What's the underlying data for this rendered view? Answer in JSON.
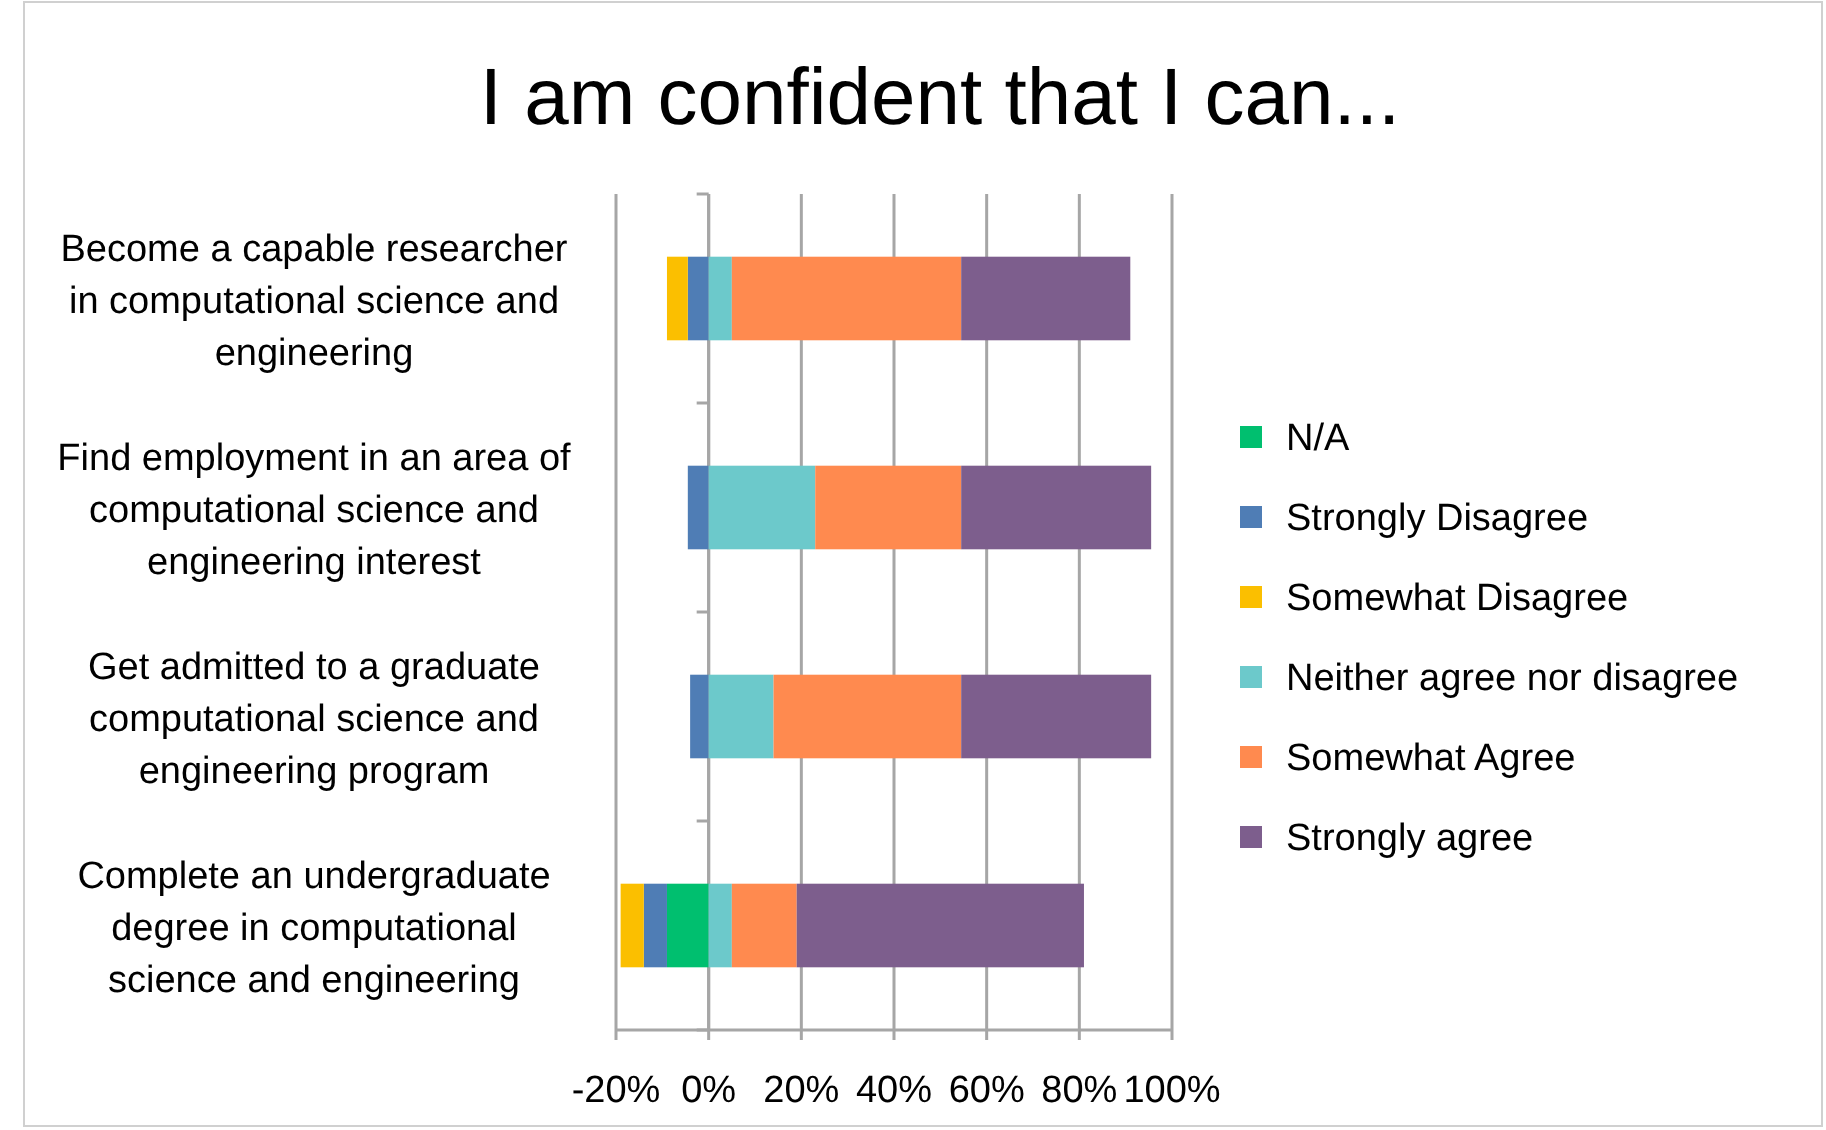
{
  "chart_data": {
    "type": "bar",
    "orientation": "horizontal",
    "stacked": true,
    "title": "I am confident that I can...",
    "categories": [
      "Become a capable researcher in computational science and engineering",
      "Find employment in an area of computational science and engineering interest",
      "Get admitted to a graduate computational science and engineering program",
      "Complete an undergraduate degree in computational science and engineering"
    ],
    "series": [
      {
        "name": "N/A",
        "color": "#00bf6f",
        "values": [
          0,
          0,
          0,
          -9
        ]
      },
      {
        "name": "Strongly Disagree",
        "color": "#4f7db5",
        "values": [
          -4.5,
          -4.5,
          -4,
          -5
        ]
      },
      {
        "name": "Somewhat Disagree",
        "color": "#fbbf00",
        "values": [
          -4.5,
          0,
          0,
          -5
        ]
      },
      {
        "name": "Neither agree nor disagree",
        "color": "#6cc9cb",
        "values": [
          5,
          23,
          14,
          5
        ]
      },
      {
        "name": "Somewhat Agree",
        "color": "#ff8a4f",
        "values": [
          49.5,
          31.5,
          40.5,
          14
        ]
      },
      {
        "name": "Strongly agree",
        "color": "#7d5e8d",
        "values": [
          36.5,
          41,
          41,
          62
        ]
      }
    ],
    "xlim": [
      -20,
      100
    ],
    "xticks": [
      {
        "value": -20,
        "label": "-20%"
      },
      {
        "value": 0,
        "label": "0%"
      },
      {
        "value": 20,
        "label": "20%"
      },
      {
        "value": 40,
        "label": "40%"
      },
      {
        "value": 60,
        "label": "60%"
      },
      {
        "value": 80,
        "label": "80%"
      },
      {
        "value": 100,
        "label": "100%"
      }
    ],
    "grid": "x",
    "legend": "right"
  }
}
